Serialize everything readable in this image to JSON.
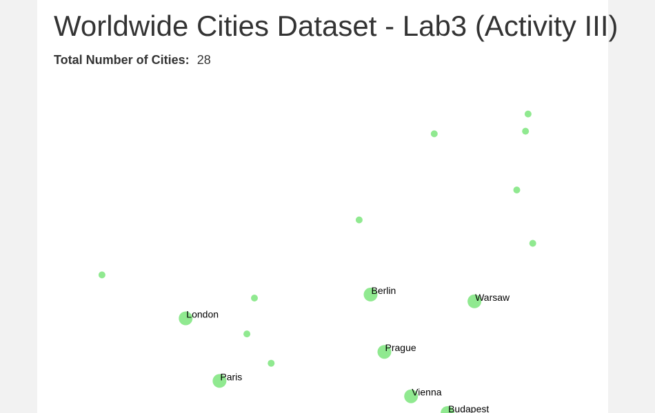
{
  "header": {
    "title": "Worldwide Cities Dataset - Lab3 (Activity III)"
  },
  "stats": {
    "total_label": "Total Number of Cities:",
    "total_value": "28"
  },
  "colors": {
    "marker": "#90e990",
    "label": "#000000"
  },
  "chart_data": {
    "type": "scatter",
    "x_axis": "longitude",
    "y_axis": "latitude",
    "points": [
      {
        "name": "London",
        "lon": -0.13,
        "lat": 51.51,
        "large": true,
        "labeled": true
      },
      {
        "name": "Paris",
        "lon": 2.35,
        "lat": 48.86,
        "large": true,
        "labeled": true
      },
      {
        "name": "Berlin",
        "lon": 13.41,
        "lat": 52.52,
        "large": true,
        "labeled": true
      },
      {
        "name": "Warsaw",
        "lon": 21.01,
        "lat": 52.23,
        "large": true,
        "labeled": true
      },
      {
        "name": "Prague",
        "lon": 14.42,
        "lat": 50.09,
        "large": true,
        "labeled": true
      },
      {
        "name": "Vienna",
        "lon": 16.37,
        "lat": 48.21,
        "large": true,
        "labeled": true
      },
      {
        "name": "Budapest",
        "lon": 19.04,
        "lat": 47.5,
        "large": true,
        "labeled": true
      },
      {
        "name": "",
        "lon": -6.26,
        "lat": 53.35,
        "large": false,
        "labeled": false
      },
      {
        "name": "",
        "lon": 4.9,
        "lat": 52.37,
        "large": false,
        "labeled": false
      },
      {
        "name": "",
        "lon": 4.35,
        "lat": 50.85,
        "large": false,
        "labeled": false
      },
      {
        "name": "",
        "lon": 6.13,
        "lat": 49.61,
        "large": false,
        "labeled": false
      },
      {
        "name": "",
        "lon": 12.57,
        "lat": 55.68,
        "large": false,
        "labeled": false
      },
      {
        "name": "",
        "lon": 18.07,
        "lat": 59.33,
        "large": false,
        "labeled": false
      },
      {
        "name": "",
        "lon": 24.11,
        "lat": 56.95,
        "large": false,
        "labeled": false
      },
      {
        "name": "",
        "lon": 24.75,
        "lat": 59.44,
        "large": false,
        "labeled": false
      },
      {
        "name": "",
        "lon": 25.28,
        "lat": 54.69,
        "large": false,
        "labeled": false
      },
      {
        "name": "",
        "lon": 24.94,
        "lat": 60.17,
        "large": false,
        "labeled": false
      }
    ],
    "view": {
      "lon_min": -11.0,
      "lon_max": 30.8,
      "lat_min": 47.5,
      "lat_max": 65.0
    }
  }
}
